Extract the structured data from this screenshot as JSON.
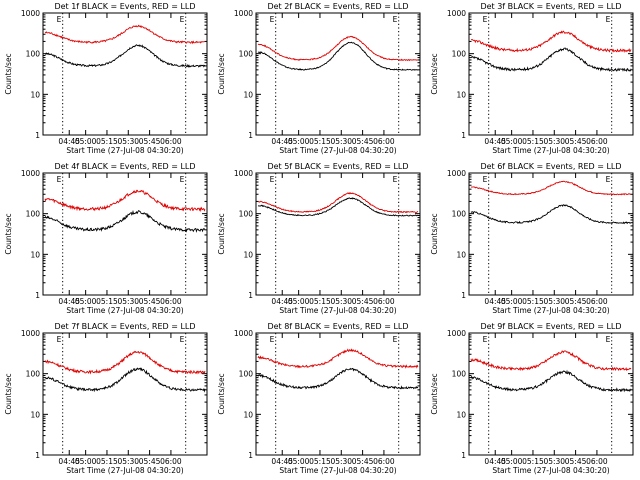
{
  "chart_data": [
    {
      "type": "line",
      "title": "Det 1f BLACK = Events, RED = LLD",
      "xlabel": "Start Time (27-Jul-08 04:30:20)",
      "ylabel": "Counts/sec",
      "yscale": "log",
      "ylim": [
        1,
        1000
      ],
      "x_ticks": [
        "04:45",
        "05:00",
        "05:15",
        "05:30",
        "05:45",
        "06:00"
      ],
      "y_ticks": [
        "1",
        "10",
        "100",
        "1000"
      ],
      "markers": [
        "E",
        "E"
      ],
      "series": [
        {
          "color": "#000000",
          "base": 50,
          "peak": 160,
          "wing": 100,
          "noise": 0.05
        },
        {
          "color": "#e00000",
          "base": 190,
          "peak": 480,
          "wing": 330,
          "noise": 0.05
        }
      ]
    },
    {
      "type": "line",
      "title": "Det 2f BLACK = Events, RED = LLD",
      "xlabel": "Start Time (27-Jul-08 04:30:20)",
      "ylabel": "Counts/sec",
      "yscale": "log",
      "ylim": [
        1,
        1000
      ],
      "x_ticks": [
        "04:45",
        "05:00",
        "05:15",
        "05:30",
        "05:45",
        "06:00"
      ],
      "y_ticks": [
        "1",
        "10",
        "100",
        "1000"
      ],
      "markers": [
        "E",
        "E"
      ],
      "series": [
        {
          "color": "#000000",
          "base": 40,
          "peak": 190,
          "wing": 110,
          "noise": 0.03
        },
        {
          "color": "#e00000",
          "base": 70,
          "peak": 260,
          "wing": 170,
          "noise": 0.03
        }
      ]
    },
    {
      "type": "line",
      "title": "Det 3f BLACK = Events, RED = LLD",
      "xlabel": "Start Time (27-Jul-08 04:30:20)",
      "ylabel": "Counts/sec",
      "yscale": "log",
      "ylim": [
        1,
        1000
      ],
      "x_ticks": [
        "04:45",
        "05:00",
        "05:15",
        "05:30",
        "05:45",
        "06:00"
      ],
      "y_ticks": [
        "1",
        "10",
        "100",
        "1000"
      ],
      "markers": [
        "E",
        "E"
      ],
      "series": [
        {
          "color": "#000000",
          "base": 40,
          "peak": 130,
          "wing": 80,
          "noise": 0.07
        },
        {
          "color": "#e00000",
          "base": 120,
          "peak": 340,
          "wing": 210,
          "noise": 0.07
        }
      ]
    },
    {
      "type": "line",
      "title": "Det 4f BLACK = Events, RED = LLD",
      "xlabel": "Start Time (27-Jul-08 04:30:20)",
      "ylabel": "Counts/sec",
      "yscale": "log",
      "ylim": [
        1,
        1000
      ],
      "x_ticks": [
        "04:45",
        "05:00",
        "05:15",
        "05:30",
        "05:45",
        "06:00"
      ],
      "y_ticks": [
        "1",
        "10",
        "100",
        "1000"
      ],
      "markers": [
        "E",
        "E"
      ],
      "series": [
        {
          "color": "#000000",
          "base": 40,
          "peak": 110,
          "wing": 80,
          "noise": 0.08
        },
        {
          "color": "#e00000",
          "base": 130,
          "peak": 360,
          "wing": 230,
          "noise": 0.08
        }
      ]
    },
    {
      "type": "line",
      "title": "Det 5f BLACK = Events, RED = LLD",
      "xlabel": "Start Time (27-Jul-08 04:30:20)",
      "ylabel": "Counts/sec",
      "yscale": "log",
      "ylim": [
        1,
        1000
      ],
      "x_ticks": [
        "04:45",
        "05:00",
        "05:15",
        "05:30",
        "05:45",
        "06:00"
      ],
      "y_ticks": [
        "1",
        "10",
        "100",
        "1000"
      ],
      "markers": [
        "E",
        "E"
      ],
      "series": [
        {
          "color": "#000000",
          "base": 90,
          "peak": 240,
          "wing": 160,
          "noise": 0.03
        },
        {
          "color": "#e00000",
          "base": 110,
          "peak": 320,
          "wing": 200,
          "noise": 0.03
        }
      ]
    },
    {
      "type": "line",
      "title": "Det 6f BLACK = Events, RED = LLD",
      "xlabel": "Start Time (27-Jul-08 04:30:20)",
      "ylabel": "Counts/sec",
      "yscale": "log",
      "ylim": [
        1,
        1000
      ],
      "x_ticks": [
        "04:45",
        "05:00",
        "05:15",
        "05:30",
        "05:45",
        "06:00"
      ],
      "y_ticks": [
        "1",
        "10",
        "100",
        "1000"
      ],
      "markers": [
        "E",
        "E"
      ],
      "series": [
        {
          "color": "#000000",
          "base": 60,
          "peak": 160,
          "wing": 110,
          "noise": 0.04
        },
        {
          "color": "#e00000",
          "base": 300,
          "peak": 620,
          "wing": 450,
          "noise": 0.03
        }
      ]
    },
    {
      "type": "line",
      "title": "Det 7f BLACK = Events, RED = LLD",
      "xlabel": "Start Time (27-Jul-08 04:30:20)",
      "ylabel": "Counts/sec",
      "yscale": "log",
      "ylim": [
        1,
        1000
      ],
      "x_ticks": [
        "04:45",
        "05:00",
        "05:15",
        "05:30",
        "05:45",
        "06:00"
      ],
      "y_ticks": [
        "1",
        "10",
        "100",
        "1000"
      ],
      "markers": [
        "E",
        "E"
      ],
      "series": [
        {
          "color": "#000000",
          "base": 40,
          "peak": 130,
          "wing": 80,
          "noise": 0.07
        },
        {
          "color": "#e00000",
          "base": 110,
          "peak": 340,
          "wing": 200,
          "noise": 0.07
        }
      ]
    },
    {
      "type": "line",
      "title": "Det 8f BLACK = Events, RED = LLD",
      "xlabel": "Start Time (27-Jul-08 04:30:20)",
      "ylabel": "Counts/sec",
      "yscale": "log",
      "ylim": [
        1,
        1000
      ],
      "x_ticks": [
        "04:45",
        "05:00",
        "05:15",
        "05:30",
        "05:45",
        "06:00"
      ],
      "y_ticks": [
        "1",
        "10",
        "100",
        "1000"
      ],
      "markers": [
        "E",
        "E"
      ],
      "series": [
        {
          "color": "#000000",
          "base": 45,
          "peak": 130,
          "wing": 90,
          "noise": 0.06
        },
        {
          "color": "#e00000",
          "base": 150,
          "peak": 380,
          "wing": 250,
          "noise": 0.06
        }
      ]
    },
    {
      "type": "line",
      "title": "Det 9f BLACK = Events, RED = LLD",
      "xlabel": "Start Time (27-Jul-08 04:30:20)",
      "ylabel": "Counts/sec",
      "yscale": "log",
      "ylim": [
        1,
        1000
      ],
      "x_ticks": [
        "04:45",
        "05:00",
        "05:15",
        "05:30",
        "05:45",
        "06:00"
      ],
      "y_ticks": [
        "1",
        "10",
        "100",
        "1000"
      ],
      "markers": [
        "E",
        "E"
      ],
      "series": [
        {
          "color": "#000000",
          "base": 40,
          "peak": 110,
          "wing": 80,
          "noise": 0.07
        },
        {
          "color": "#e00000",
          "base": 130,
          "peak": 340,
          "wing": 220,
          "noise": 0.07
        }
      ]
    }
  ]
}
